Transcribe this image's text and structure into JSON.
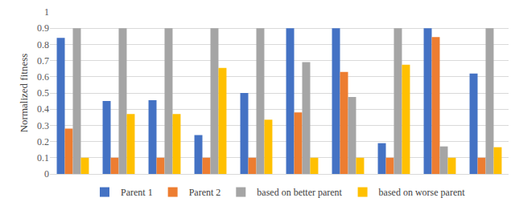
{
  "chart_data": {
    "type": "bar",
    "categories": [
      null,
      null,
      null,
      null,
      null,
      null,
      null,
      null,
      null,
      null
    ],
    "series": [
      {
        "name": "Parent 1",
        "color": "#4472c4",
        "values": [
          0.84,
          0.45,
          0.455,
          0.24,
          0.5,
          0.9,
          0.9,
          0.19,
          0.9,
          0.62
        ]
      },
      {
        "name": "Parent 2",
        "color": "#ed7d31",
        "values": [
          0.28,
          0.1,
          0.1,
          0.1,
          0.1,
          0.38,
          0.63,
          0.1,
          0.845,
          0.1
        ]
      },
      {
        "name": "based on better parent",
        "color": "#a5a5a5",
        "values": [
          0.9,
          0.9,
          0.9,
          0.9,
          0.9,
          0.69,
          0.475,
          0.9,
          0.17,
          0.9
        ]
      },
      {
        "name": "based on worse parent",
        "color": "#ffc000",
        "values": [
          0.1,
          0.37,
          0.37,
          0.655,
          0.335,
          0.1,
          0.1,
          0.675,
          0.1,
          0.165
        ]
      }
    ],
    "y_label": "Normalized fitness",
    "ylim": [
      0,
      1
    ],
    "yticks": [
      0,
      0.1,
      0.2,
      0.3,
      0.4,
      0.5,
      0.6,
      0.7,
      0.8,
      0.9,
      1
    ],
    "grid": true,
    "legend": "bottom",
    "tick_labels": "y"
  }
}
